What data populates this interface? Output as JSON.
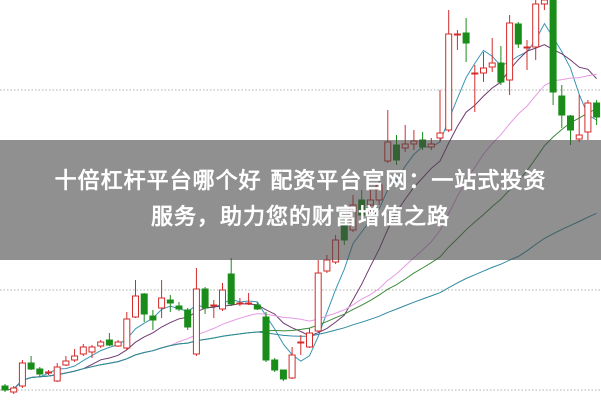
{
  "headline": {
    "line1": "十倍杠杆平台哪个好 配资平台官网：一站式投资",
    "line2": "服务，助力您的财富增值之路"
  },
  "chart_data": {
    "type": "candlestick",
    "title": "",
    "xlabel": "",
    "ylabel": "",
    "ylim": [
      0,
      100
    ],
    "grid": "horizontal dotted",
    "grid_levels": [
      2.5,
      27.5,
      77.5
    ],
    "colors": {
      "up": "#d42a2a",
      "down": "#1a8c1a",
      "grid": "#b0b0b0",
      "ma": [
        "#3a96b4",
        "#6e3a6e",
        "#e49be4",
        "#3a8a3a",
        "#2f8aa0"
      ]
    },
    "moving_averages": [
      5,
      10,
      20,
      30,
      60
    ],
    "ohlc": [
      [
        3.5,
        4,
        2,
        2.5
      ],
      [
        2,
        3.5,
        1.5,
        3
      ],
      [
        3.5,
        10,
        3,
        9.25
      ],
      [
        9.25,
        11,
        7.5,
        7.75
      ],
      [
        7.75,
        8.25,
        6,
        6.5
      ],
      [
        6.75,
        7.5,
        6.25,
        7
      ],
      [
        4.75,
        9.25,
        4.5,
        8.25
      ],
      [
        8.75,
        11,
        8.5,
        9.75
      ],
      [
        10,
        12.75,
        9.5,
        11
      ],
      [
        11.5,
        14,
        11,
        13.25
      ],
      [
        12,
        13.75,
        10.5,
        13.25
      ],
      [
        13.5,
        15,
        13,
        14.5
      ],
      [
        15,
        16.75,
        13.5,
        13.75
      ],
      [
        13.5,
        15,
        13.25,
        14.5
      ],
      [
        13,
        22,
        12.5,
        20.25
      ],
      [
        20.75,
        30,
        20.5,
        26
      ],
      [
        26.5,
        26.75,
        19.5,
        21.5
      ],
      [
        21,
        22.5,
        17.5,
        20
      ],
      [
        23,
        30,
        20.5,
        25.5
      ],
      [
        25,
        26.25,
        22,
        24.25
      ],
      [
        23.5,
        24.5,
        22.25,
        22.75
      ],
      [
        22.5,
        23,
        17.5,
        18.25
      ],
      [
        11.5,
        33,
        11,
        27.75
      ],
      [
        27.75,
        28.25,
        21.5,
        23
      ],
      [
        23.75,
        25,
        20.5,
        23.75
      ],
      [
        22.75,
        29.25,
        22.25,
        27.5
      ],
      [
        31.5,
        35.5,
        23.5,
        24
      ],
      [
        24,
        25.5,
        23.5,
        24.25
      ],
      [
        24.25,
        26.75,
        23.75,
        24.25
      ],
      [
        23.75,
        24.5,
        22.5,
        22.75
      ],
      [
        20.75,
        22,
        9.5,
        10
      ],
      [
        10,
        10.5,
        7,
        7.5
      ],
      [
        7.5,
        7.5,
        4.75,
        5.25
      ],
      [
        5.5,
        13.25,
        5.25,
        11.25
      ],
      [
        14.5,
        16.25,
        11.25,
        14.5
      ],
      [
        13.25,
        18,
        13,
        16.75
      ],
      [
        17.25,
        35,
        17,
        31.75
      ],
      [
        32.25,
        36.25,
        31.75,
        35
      ],
      [
        34.5,
        41.25,
        34,
        40
      ],
      [
        43.75,
        46.25,
        38.75,
        40
      ],
      [
        42.5,
        51.25,
        42,
        48.75
      ],
      [
        50,
        52.5,
        45,
        46.25
      ],
      [
        48.75,
        52.5,
        47,
        50
      ],
      [
        50,
        55,
        48.75,
        53.75
      ],
      [
        59.75,
        72.5,
        59.25,
        64.5
      ],
      [
        63.75,
        66.25,
        58.75,
        60
      ],
      [
        63,
        68.75,
        62,
        64
      ],
      [
        64,
        67.5,
        62.5,
        64.75
      ],
      [
        65,
        67,
        62.5,
        63.25
      ],
      [
        63.25,
        65.5,
        62.5,
        64
      ],
      [
        65.5,
        77.5,
        64.5,
        66.75
      ],
      [
        67.5,
        97.5,
        67,
        91.5
      ],
      [
        91.25,
        92.5,
        87.5,
        91.5
      ],
      [
        91.75,
        95.5,
        84.5,
        89.25
      ],
      [
        81.75,
        83.75,
        72,
        81.75
      ],
      [
        81.75,
        87,
        79.5,
        83
      ],
      [
        83.25,
        90.5,
        82,
        84.25
      ],
      [
        84.25,
        88.5,
        78.75,
        79.5
      ],
      [
        80,
        96.25,
        76.25,
        94.25
      ],
      [
        94,
        94.5,
        88,
        89
      ],
      [
        88.25,
        90,
        82.5,
        88.25
      ],
      [
        88.25,
        100,
        85,
        99
      ],
      [
        99,
        100,
        97.5,
        100
      ],
      [
        100,
        100,
        73.75,
        77
      ],
      [
        76,
        78.75,
        68,
        71.25
      ],
      [
        71,
        71.25,
        63.75,
        67.5
      ],
      [
        65.25,
        76.25,
        64.5,
        66.25
      ],
      [
        67,
        75,
        65,
        74.25
      ],
      [
        74.25,
        75,
        68.75,
        70.75
      ]
    ]
  }
}
